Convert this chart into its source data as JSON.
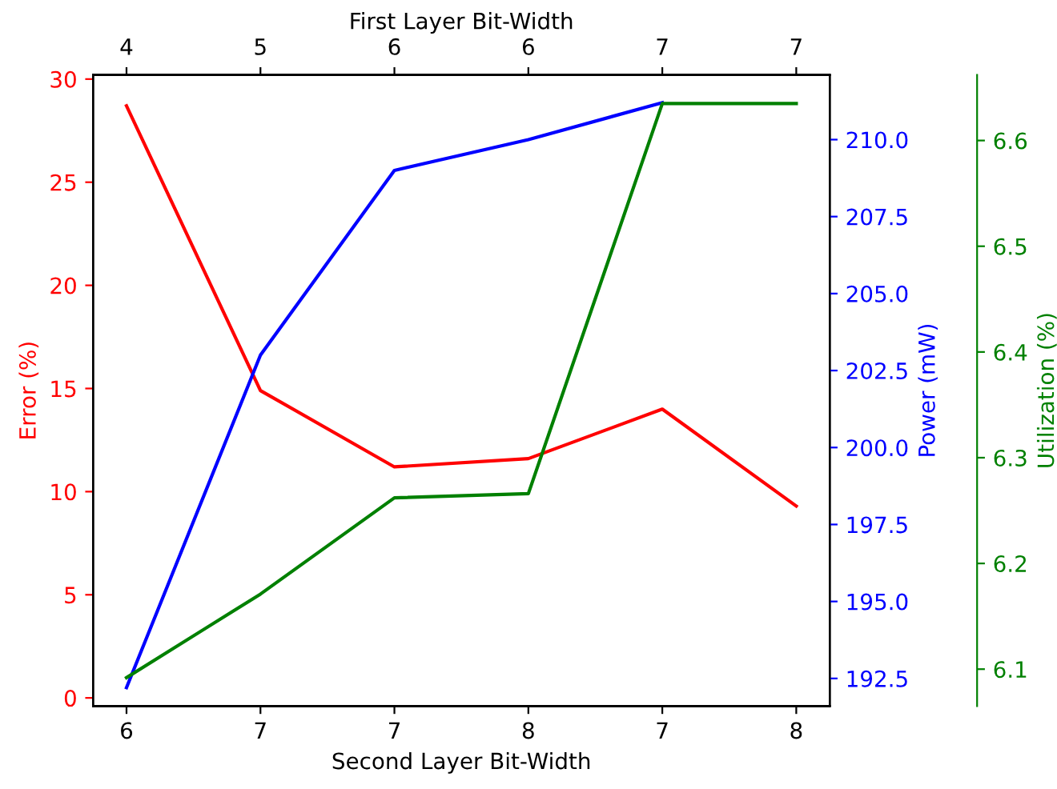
{
  "chart_data": {
    "type": "line",
    "xlabel": "Second Layer Bit-Width",
    "x2label": "First Layer Bit-Width",
    "ylabel": "Error (%)",
    "y2label": "Power (mW)",
    "y3label": "Utilization (%)",
    "categories": [
      "6",
      "7",
      "7",
      "8",
      "7",
      "8"
    ],
    "annotations": [
      "4",
      "5",
      "6",
      "6",
      "7",
      "7"
    ],
    "series": [
      {
        "color": "#ff0000",
        "values": [
          28.7,
          14.9,
          11.2,
          11.6,
          14.0,
          9.3
        ]
      },
      {
        "color": "#0000ff",
        "axis": "y2",
        "values": [
          192.2,
          203.0,
          209.0,
          210.0,
          211.2,
          null
        ]
      },
      {
        "color": "#008000",
        "axis": "y3",
        "values": [
          6.092,
          6.171,
          6.262,
          6.266,
          6.635,
          6.635
        ]
      }
    ],
    "ylim": [
      -0.4,
      30.2
    ],
    "yticks": [
      0,
      5,
      10,
      15,
      20,
      25,
      30
    ],
    "y2lim": [
      191.6,
      212.1
    ],
    "y2ticks": [
      {
        "value": 192.5,
        "label": "192.5"
      },
      {
        "value": 195,
        "label": "195.0"
      },
      {
        "value": 197.5,
        "label": "197.5"
      },
      {
        "value": 200,
        "label": "200.0"
      },
      {
        "value": 202.5,
        "label": "202.5"
      },
      {
        "value": 205,
        "label": "205.0"
      },
      {
        "value": 207.5,
        "label": "207.5"
      },
      {
        "value": 210,
        "label": "210.0"
      }
    ],
    "y3lim": [
      6.065,
      6.662
    ],
    "y3ticks": [
      6.1,
      6.2,
      6.3,
      6.4,
      6.5,
      6.6
    ],
    "grid": false,
    "legend": false,
    "marker": "none",
    "line_style": "solid"
  }
}
